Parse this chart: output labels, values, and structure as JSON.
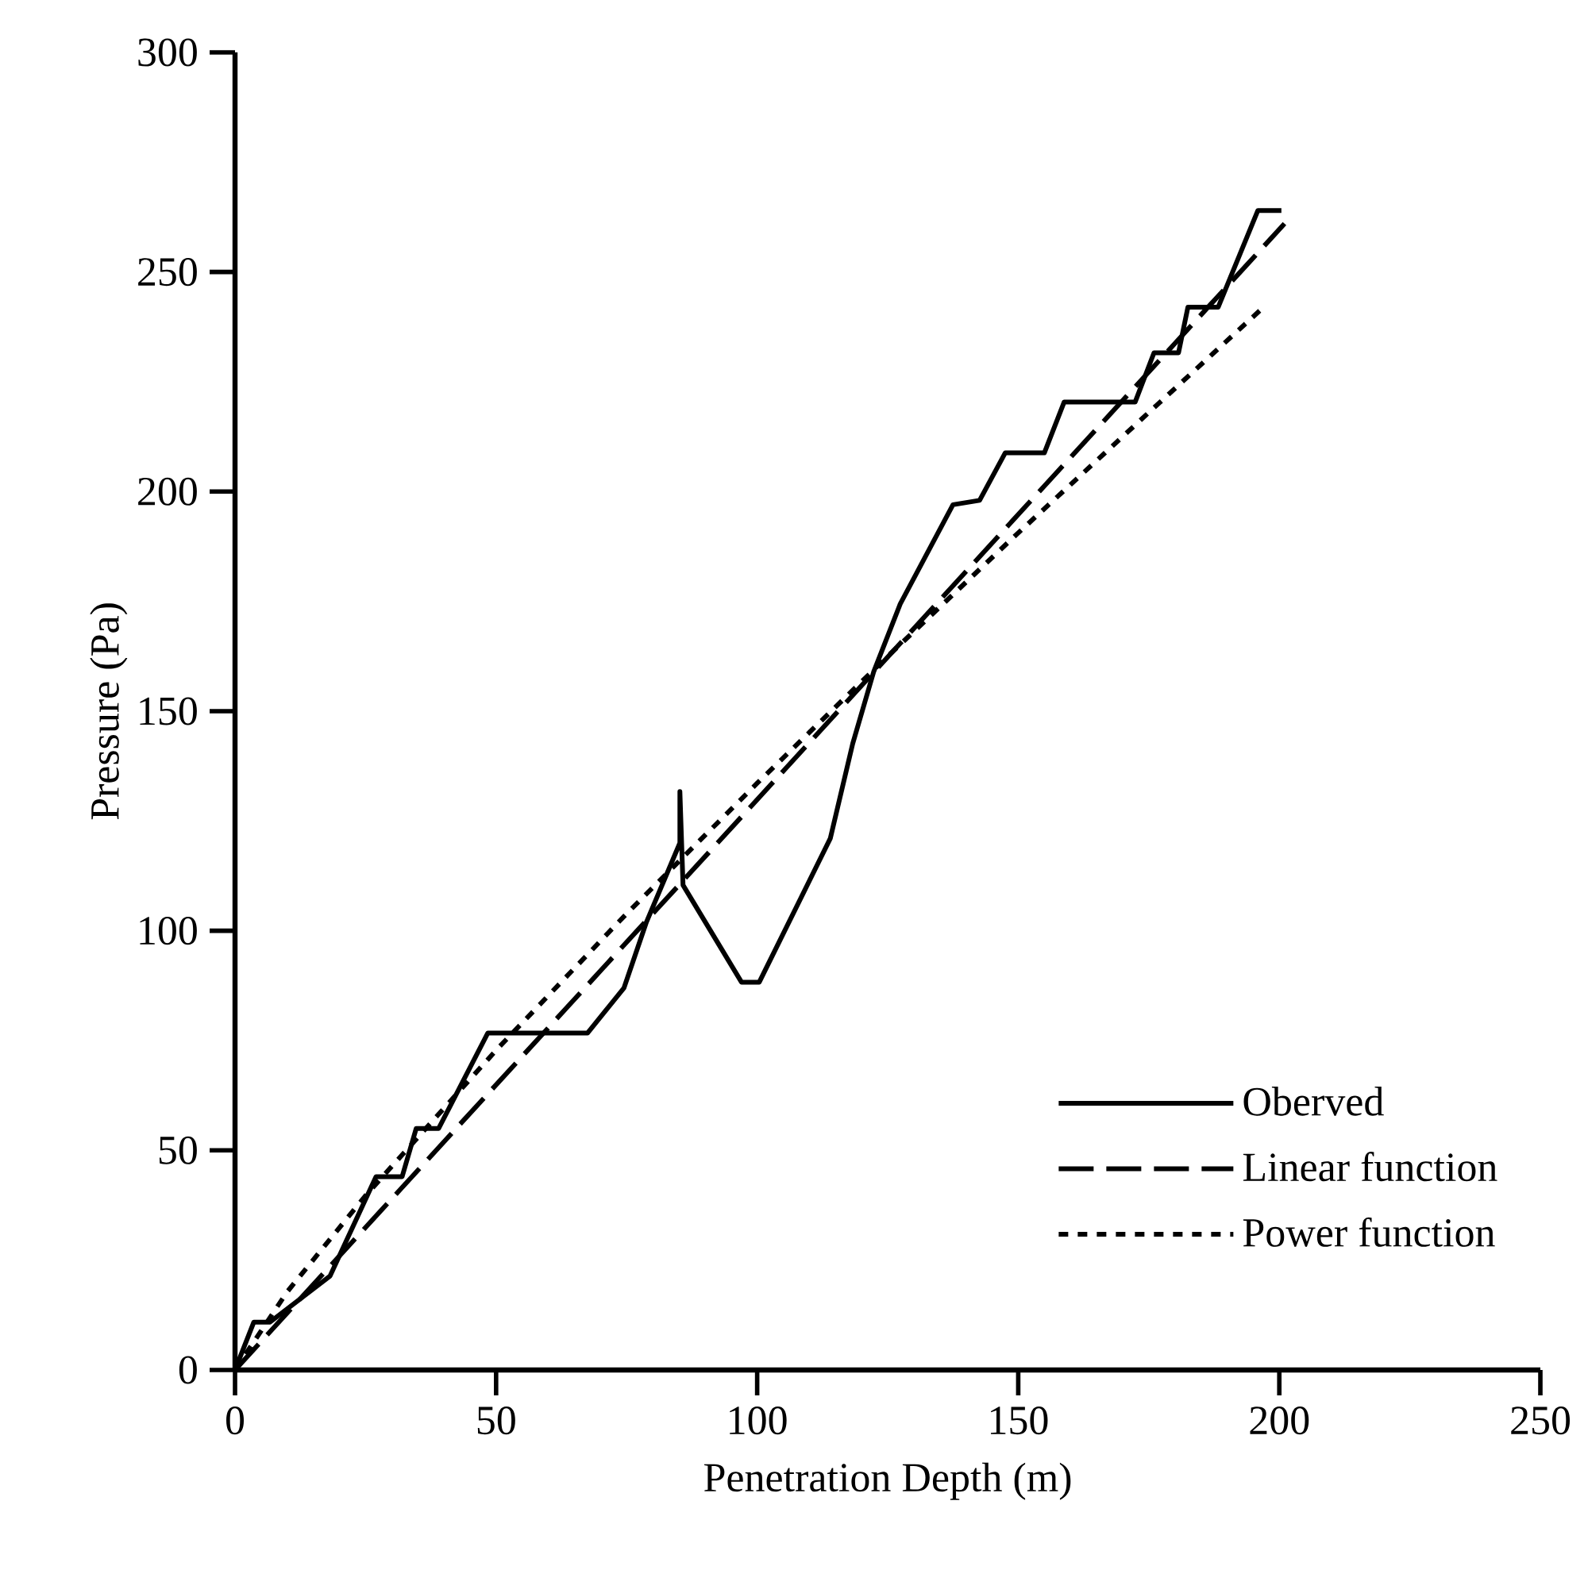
{
  "chart_data": {
    "type": "line",
    "xlabel": "Penetration Depth (m)",
    "ylabel": "Pressure (Pa)",
    "xlim": [
      0,
      250
    ],
    "ylim": [
      0,
      300
    ],
    "xticks": [
      0,
      50,
      100,
      150,
      200,
      250
    ],
    "yticks": [
      0,
      50,
      100,
      150,
      200,
      250,
      300
    ],
    "legend": "bottom right",
    "marker": "none",
    "series": [
      {
        "name": "Oberved",
        "color": "#000000",
        "line_style": "solid",
        "x": [
          0,
          3.6,
          6.7,
          18.2,
          27,
          32,
          34.7,
          39,
          48.4,
          67.5,
          74.5,
          78.8,
          85.2,
          85.2,
          85.8,
          97,
          100.4,
          114,
          118.3,
          122.3,
          127.4,
          137.5,
          142.6,
          147.5,
          155,
          158.8,
          172.4,
          176,
          180.7,
          182.5,
          188.3,
          195.9,
          200.4
        ],
        "values": [
          0,
          10.9,
          10.9,
          21.4,
          44,
          44,
          55,
          55,
          76.7,
          76.7,
          87,
          102,
          120,
          131.7,
          110.4,
          88.3,
          88.3,
          121,
          142.6,
          158.9,
          174.4,
          197,
          198,
          208.8,
          208.8,
          220.4,
          220.4,
          231.6,
          231.6,
          242,
          242,
          264,
          264
        ]
      },
      {
        "name": "Linear  function",
        "color": "#000000",
        "line_style": "dashed",
        "x": [
          0,
          201
        ],
        "values": [
          0,
          261
        ]
      },
      {
        "name": "Power  function",
        "color": "#000000",
        "line_style": "dotted",
        "x": [
          0,
          10,
          25,
          50,
          75,
          100,
          125,
          150,
          175,
          197
        ],
        "values": [
          0,
          17.8,
          39.7,
          72.8,
          103.9,
          133.6,
          162.5,
          190.6,
          218,
          242
        ]
      }
    ]
  }
}
